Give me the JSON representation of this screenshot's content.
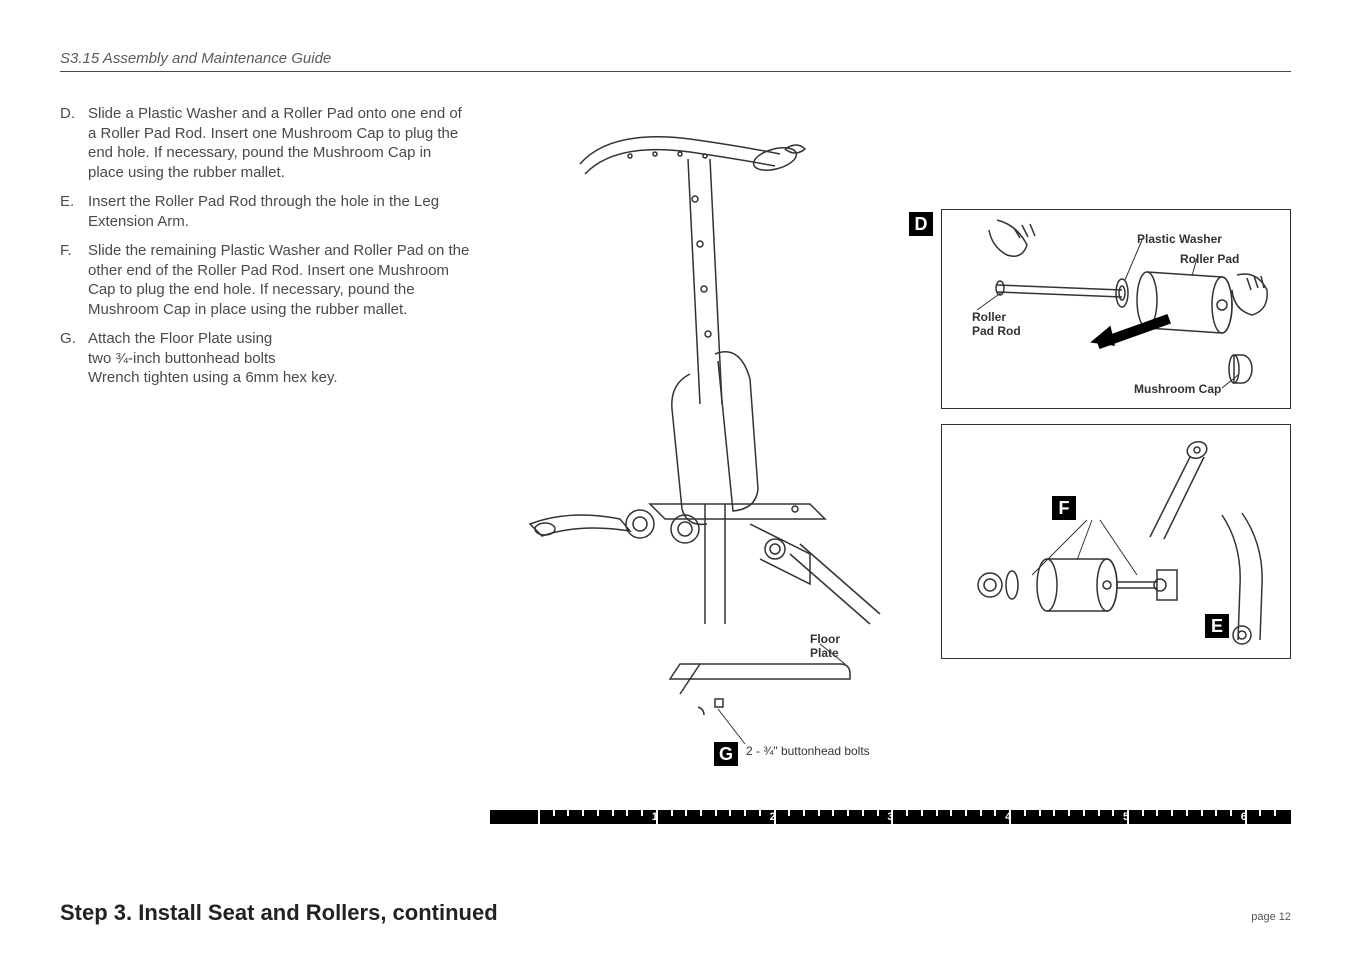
{
  "header": {
    "title": "S3.15 Assembly and Maintenance Guide"
  },
  "steps": [
    {
      "letter": "D.",
      "text": "Slide a Plastic Washer and a Roller Pad onto one end of a Roller Pad Rod. Insert one Mushroom Cap to plug the end hole. If necessary, pound the Mushroom Cap in place using the rubber mallet."
    },
    {
      "letter": "E.",
      "text": "Insert the Roller Pad Rod through the hole in the Leg Extension Arm."
    },
    {
      "letter": "F.",
      "text": "Slide the remaining Plastic Washer and Roller Pad on the other end of the Roller Pad Rod. Insert one Mushroom Cap to plug the end hole. If necessary, pound the Mushroom Cap in place using the rubber mallet."
    },
    {
      "letter": "G.",
      "text": "Attach the Floor Plate using\ntwo ¾-inch buttonhead bolts\nWrench tighten using a 6mm hex key."
    }
  ],
  "diagram": {
    "badges": {
      "D": "D",
      "E": "E",
      "F": "F",
      "G": "G"
    },
    "labels": {
      "plastic_washer": "Plastic Washer",
      "roller_pad": "Roller Pad",
      "roller_pad_rod": "Roller\nPad Rod",
      "mushroom_cap": "Mushroom Cap",
      "floor_plate": "Floor\nPlate",
      "bolts_note": "2 - ¾\" buttonhead bolts"
    }
  },
  "ruler": {
    "numbers": [
      "1",
      "2",
      "3",
      "4",
      "5",
      "6"
    ]
  },
  "footer": {
    "title": "Step 3. Install Seat and Rollers, continued",
    "page": "page 12"
  },
  "colors": {
    "text": "#4a4a4a",
    "rule": "#4a4a4a",
    "black": "#000000",
    "white": "#ffffff"
  }
}
